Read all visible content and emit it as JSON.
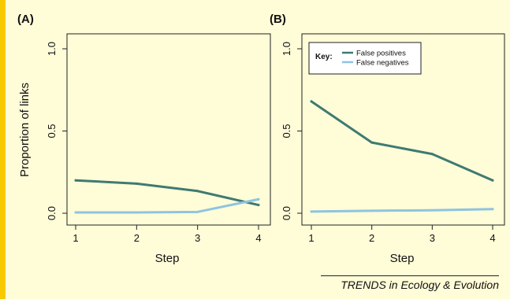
{
  "source_label": "TRENDS in Ecology & Evolution",
  "colors": {
    "background": "#fffcd8",
    "accent": "#f9c900",
    "false_positives": "#3f7a72",
    "false_negatives": "#8ec4e0"
  },
  "chart_data": [
    {
      "type": "line",
      "panel_label": "(A)",
      "xlabel": "Step",
      "ylabel": "Proportion of links",
      "x": [
        1,
        2,
        3,
        4
      ],
      "xticks": [
        "1",
        "2",
        "3",
        "4"
      ],
      "ylim": [
        0,
        1
      ],
      "yticks": [
        "0.0",
        "0.5",
        "1.0"
      ],
      "grid": false,
      "legend": null,
      "series": [
        {
          "key": "false_positives",
          "values": [
            0.2,
            0.18,
            0.135,
            0.05
          ]
        },
        {
          "key": "false_negatives",
          "values": [
            0.005,
            0.005,
            0.008,
            0.085
          ]
        }
      ]
    },
    {
      "type": "line",
      "panel_label": "(B)",
      "xlabel": "Step",
      "ylabel": "",
      "x": [
        1,
        2,
        3,
        4
      ],
      "xticks": [
        "1",
        "2",
        "3",
        "4"
      ],
      "ylim": [
        0,
        1
      ],
      "yticks": [
        "0.0",
        "0.5",
        "1.0"
      ],
      "grid": false,
      "legend": {
        "title": "Key:",
        "placement": "top-left"
      },
      "series": [
        {
          "key": "false_positives",
          "name": "False positives",
          "values": [
            0.68,
            0.43,
            0.36,
            0.2
          ]
        },
        {
          "key": "false_negatives",
          "name": "False negatives",
          "values": [
            0.01,
            0.015,
            0.018,
            0.025
          ]
        }
      ]
    }
  ]
}
